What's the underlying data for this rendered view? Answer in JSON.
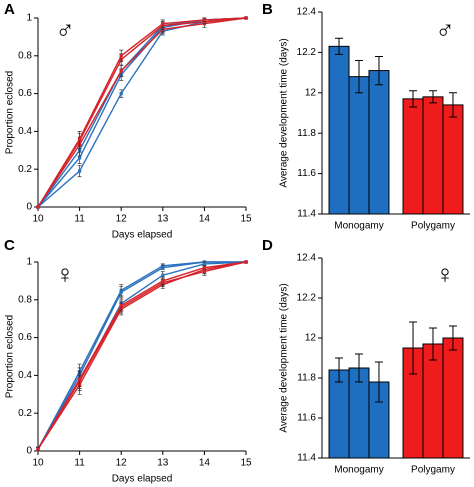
{
  "chart_data": [
    {
      "type": "line",
      "label": "A",
      "symbol": "♂",
      "xlabel": "Days elapsed",
      "ylabel": "Proportion eclosed",
      "x": [
        10,
        11,
        12,
        13,
        14,
        15
      ],
      "xlim": [
        10,
        15
      ],
      "xticks": [
        10,
        11,
        12,
        13,
        14,
        15
      ],
      "ylim": [
        0,
        1
      ],
      "yticks": [
        0,
        0.2,
        0.4,
        0.6,
        0.8,
        1
      ],
      "series": [
        {
          "color": "#2a72c0",
          "values": [
            0,
            0.19,
            0.6,
            0.93,
            0.98,
            1
          ],
          "errors": [
            0,
            0.03,
            0.02,
            0.02,
            0.01,
            0
          ]
        },
        {
          "color": "#2a72c0",
          "values": [
            0,
            0.26,
            0.7,
            0.95,
            0.99,
            1
          ],
          "errors": [
            0,
            0.03,
            0.03,
            0.02,
            0.01,
            0
          ]
        },
        {
          "color": "#2a72c0",
          "values": [
            0,
            0.3,
            0.72,
            0.96,
            0.99,
            1
          ],
          "errors": [
            0,
            0.03,
            0.03,
            0.02,
            0.01,
            0
          ]
        },
        {
          "color": "#d7232a",
          "values": [
            0,
            0.33,
            0.72,
            0.94,
            0.97,
            1
          ],
          "errors": [
            0,
            0.04,
            0.03,
            0.02,
            0.02,
            0
          ]
        },
        {
          "color": "#d7232a",
          "values": [
            0,
            0.35,
            0.78,
            0.96,
            0.98,
            1
          ],
          "errors": [
            0,
            0.04,
            0.03,
            0.02,
            0.01,
            0
          ]
        },
        {
          "color": "#d7232a",
          "values": [
            0,
            0.36,
            0.8,
            0.97,
            0.99,
            1
          ],
          "errors": [
            0,
            0.04,
            0.03,
            0.02,
            0.01,
            0
          ]
        }
      ]
    },
    {
      "type": "bar",
      "label": "B",
      "symbol": "♂",
      "ylabel": "Average development time (days)",
      "categories": [
        "Monogamy",
        "Polygamy"
      ],
      "colors": [
        "#1f6fc0",
        "#ee1c1c"
      ],
      "ylim": [
        11.4,
        12.4
      ],
      "yticks": [
        11.4,
        11.6,
        11.8,
        12,
        12.2,
        12.4
      ],
      "series": [
        {
          "values": [
            12.23,
            11.97
          ],
          "errors": [
            0.04,
            0.04
          ]
        },
        {
          "values": [
            12.08,
            11.98
          ],
          "errors": [
            0.08,
            0.03
          ]
        },
        {
          "values": [
            12.11,
            11.94
          ],
          "errors": [
            0.07,
            0.06
          ]
        }
      ]
    },
    {
      "type": "line",
      "label": "C",
      "symbol": "♀",
      "xlabel": "Days elapsed",
      "ylabel": "Proportion eclosed",
      "x": [
        10,
        11,
        12,
        13,
        14,
        15
      ],
      "xlim": [
        10,
        15
      ],
      "xticks": [
        10,
        11,
        12,
        13,
        14,
        15
      ],
      "ylim": [
        0,
        1
      ],
      "yticks": [
        0,
        0.2,
        0.4,
        0.6,
        0.8,
        1
      ],
      "series": [
        {
          "color": "#2a72c0",
          "values": [
            0.01,
            0.42,
            0.85,
            0.98,
            1,
            1
          ],
          "errors": [
            0.01,
            0.04,
            0.03,
            0.01,
            0,
            0
          ]
        },
        {
          "color": "#2a72c0",
          "values": [
            0.01,
            0.4,
            0.84,
            0.97,
            1,
            1
          ],
          "errors": [
            0.01,
            0.04,
            0.03,
            0.01,
            0,
            0
          ]
        },
        {
          "color": "#2a72c0",
          "values": [
            0.01,
            0.37,
            0.78,
            0.93,
            0.99,
            1
          ],
          "errors": [
            0.01,
            0.05,
            0.04,
            0.02,
            0.01,
            0
          ]
        },
        {
          "color": "#d7232a",
          "values": [
            0.01,
            0.35,
            0.75,
            0.88,
            0.96,
            1
          ],
          "errors": [
            0.01,
            0.05,
            0.03,
            0.02,
            0.02,
            0
          ]
        },
        {
          "color": "#d7232a",
          "values": [
            0.01,
            0.37,
            0.76,
            0.89,
            0.95,
            1
          ],
          "errors": [
            0.01,
            0.04,
            0.03,
            0.02,
            0.02,
            0
          ]
        },
        {
          "color": "#d7232a",
          "values": [
            0.01,
            0.38,
            0.77,
            0.9,
            0.97,
            1
          ],
          "errors": [
            0.01,
            0.04,
            0.03,
            0.02,
            0.01,
            0
          ]
        }
      ]
    },
    {
      "type": "bar",
      "label": "D",
      "symbol": "♀",
      "ylabel": "Average development time (days)",
      "categories": [
        "Monogamy",
        "Polygamy"
      ],
      "colors": [
        "#1f6fc0",
        "#ee1c1c"
      ],
      "ylim": [
        11.4,
        12.4
      ],
      "yticks": [
        11.4,
        11.6,
        11.8,
        12,
        12.2,
        12.4
      ],
      "series": [
        {
          "values": [
            11.84,
            11.95
          ],
          "errors": [
            0.06,
            0.13
          ]
        },
        {
          "values": [
            11.85,
            11.97
          ],
          "errors": [
            0.07,
            0.08
          ]
        },
        {
          "values": [
            11.78,
            12.0
          ],
          "errors": [
            0.1,
            0.06
          ]
        }
      ]
    }
  ]
}
